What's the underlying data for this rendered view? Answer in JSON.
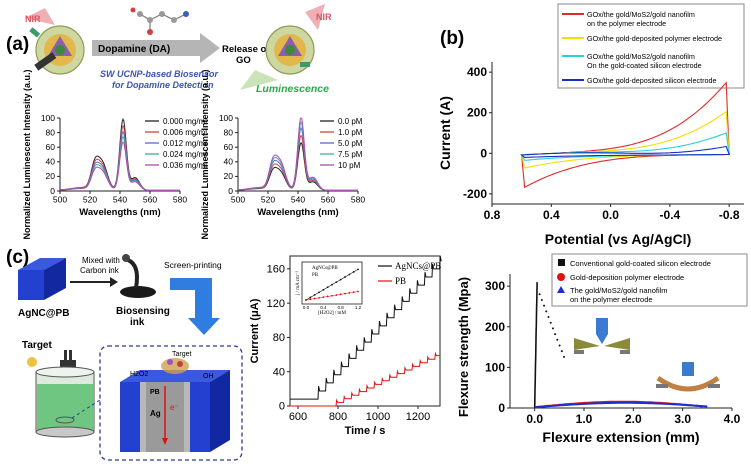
{
  "panels": {
    "a": {
      "label": "(a)",
      "schematic": {
        "nir_left": "NIR",
        "nir_right": "NIR",
        "arrow_label": "Dopamine (DA)",
        "release_label_1": "Release of",
        "release_label_2": "GO",
        "biosensor_1": "SW UCNP-based Biosensor",
        "biosensor_2": "for Dopamine Detection",
        "luminescence": "Luminescence"
      },
      "colors": {
        "arrow": "#b5b5b5",
        "biosensor_text": "#3c55b0",
        "luminescence_text": "#2aa84a",
        "nir": "#e05060"
      }
    },
    "b": {
      "label": "(b)",
      "legend": [
        {
          "name": "GOx/the gold/MoS2/gold nanofilm",
          "name2": "on the polymer electrode",
          "color": "#e02a2a"
        },
        {
          "name": "GOx/the gold-deposited polymer electrode",
          "name2": "",
          "color": "#f0e000"
        },
        {
          "name": "GOx/the gold/MoS2/gold nanofilm",
          "name2": "On the gold-coated silicon electrode",
          "color": "#29d0e0"
        },
        {
          "name": "GOx/the gold-deposited silicon electrode",
          "name2": "",
          "color": "#1830c0"
        }
      ]
    },
    "c": {
      "label": "(c)",
      "schematic": {
        "cube_label": "AgNC@PB",
        "mix_label_1": "Mixed with",
        "mix_label_2": "Carbon ink",
        "screen_printing": "Screen-printing",
        "ink_label_1": "Biosensing",
        "ink_label_2": "ink",
        "target": "Target",
        "target_small": "Target",
        "h2o2": "H2O2",
        "pb": "PB",
        "oh": "OH",
        "ag": "Ag",
        "electron": "e⁻"
      }
    },
    "d": {
      "legend": [
        {
          "name": "Conventional gold-coated silicon electrode",
          "name2": "",
          "color": "#111111",
          "marker": "square"
        },
        {
          "name": "Gold-deposition polymer electrode",
          "name2": "",
          "color": "#e01010",
          "marker": "circle"
        },
        {
          "name": "The gold/MoS2/gold nanofilm",
          "name2": "on the polymer electrode",
          "color": "#1830d0",
          "marker": "triangle"
        }
      ]
    }
  },
  "chart_data": [
    {
      "id": "a-left",
      "type": "line",
      "xlabel": "Wavelengths (nm)",
      "ylabel": "Normalized Luminescent Intensity (a.u.)",
      "xlim": [
        500,
        580
      ],
      "ylim": [
        0,
        100
      ],
      "xticks": [
        500,
        520,
        540,
        560,
        580
      ],
      "yticks": [
        0,
        20,
        40,
        60,
        80,
        100
      ],
      "series": [
        {
          "name": "0.000 mg/ml",
          "color": "#222222",
          "peak": 97
        },
        {
          "name": "0.006 mg/ml",
          "color": "#d04848",
          "peak": 88
        },
        {
          "name": "0.012 mg/ml",
          "color": "#5a6ad0",
          "peak": 80
        },
        {
          "name": "0.024 mg/ml",
          "color": "#40b0a0",
          "peak": 73
        },
        {
          "name": "0.036 mg/ml",
          "color": "#b04ab0",
          "peak": 66
        }
      ]
    },
    {
      "id": "a-right",
      "type": "line",
      "xlabel": "Wavelengths (nm)",
      "ylabel": "Normalized Luminescent Intensity (a.u.)",
      "xlim": [
        500,
        580
      ],
      "ylim": [
        0,
        100
      ],
      "xticks": [
        500,
        520,
        540,
        560,
        580
      ],
      "yticks": [
        0,
        20,
        40,
        60,
        80,
        100
      ],
      "series": [
        {
          "name": "0.0 pM",
          "color": "#222222",
          "peak": 65
        },
        {
          "name": "1.0 pM",
          "color": "#d04848",
          "peak": 75
        },
        {
          "name": "5.0 pM",
          "color": "#5a6ad0",
          "peak": 85
        },
        {
          "name": "7.5 pM",
          "color": "#40b0a0",
          "peak": 93
        },
        {
          "name": "10 pM",
          "color": "#b04ab0",
          "peak": 100
        }
      ]
    },
    {
      "id": "b",
      "type": "line",
      "xlabel": "Potential (vs Ag/AgCl)",
      "ylabel": "Current (A)",
      "xlim": [
        0.8,
        -0.9
      ],
      "ylim": [
        -250,
        450
      ],
      "xticks": [
        0.8,
        0.4,
        0.0,
        -0.4,
        -0.8
      ],
      "xticklabels": [
        "0.8",
        "0.4",
        "0.0",
        "-0.4",
        "-0.8"
      ],
      "yticks": [
        -200,
        0,
        200,
        400
      ],
      "series": [
        {
          "name": "GOx/the gold/MoS2/gold nanofilm on the polymer electrode",
          "color": "#e02a2a",
          "max": 380,
          "min": -170
        },
        {
          "name": "GOx/the gold-deposited polymer electrode",
          "color": "#f0e000",
          "max": 230,
          "min": -70
        },
        {
          "name": "GOx/the gold/MoS2/gold nanofilm On the gold-coated silicon electrode",
          "color": "#29d0e0",
          "max": 120,
          "min": -30
        },
        {
          "name": "GOx/the gold-deposited silicon electrode",
          "color": "#1830c0",
          "max": 50,
          "min": -15
        }
      ]
    },
    {
      "id": "c",
      "type": "line",
      "xlabel": "Time / s",
      "ylabel": "Current (μA)",
      "xlim": [
        560,
        1310
      ],
      "ylim": [
        0,
        175
      ],
      "xticks": [
        600,
        800,
        1000,
        1200
      ],
      "yticks": [
        0,
        40,
        80,
        120,
        160
      ],
      "series": [
        {
          "name": "AgNCs@PB",
          "color": "#111111",
          "start": 8,
          "step_start": 700,
          "step": 38,
          "step_height": 9.5
        },
        {
          "name": "PB",
          "color": "#e01010",
          "start": 0,
          "step_start": 790,
          "step": 38,
          "step_height": 4.2
        }
      ],
      "inset": {
        "xlabel": "[H2O2] / mM",
        "ylabel": "j / mA cm⁻²",
        "xticks": [
          0.0,
          0.4,
          0.8,
          1.2
        ],
        "xticklabels": [
          "0.0",
          "0.4",
          "0.8",
          "1.2"
        ],
        "series": [
          {
            "name": "AgNCs@PB",
            "color": "#111111"
          },
          {
            "name": "PB",
            "color": "#e01010"
          }
        ]
      }
    },
    {
      "id": "d",
      "type": "scatter",
      "xlabel": "Flexure extension (mm)",
      "ylabel": "Flexure strength (Mpa)",
      "xlim": [
        -0.5,
        4.0
      ],
      "ylim": [
        0,
        330
      ],
      "xticks": [
        0.0,
        1.0,
        2.0,
        3.0,
        4.0
      ],
      "xticklabels": [
        "0.0",
        "1.0",
        "2.0",
        "3.0",
        "4.0"
      ],
      "yticks": [
        0,
        100,
        200,
        300
      ],
      "series": [
        {
          "name": "Conventional gold-coated silicon electrode",
          "color": "#111111",
          "xmax": 0.05,
          "ymax": 310
        },
        {
          "name": "Gold-deposition polymer electrode",
          "color": "#e01010",
          "xmax": 3.4,
          "ymax": 15
        },
        {
          "name": "The gold/MoS2/gold nanofilm on the polymer electrode",
          "color": "#1830d0",
          "xmax": 3.5,
          "ymax": 12
        }
      ]
    }
  ]
}
